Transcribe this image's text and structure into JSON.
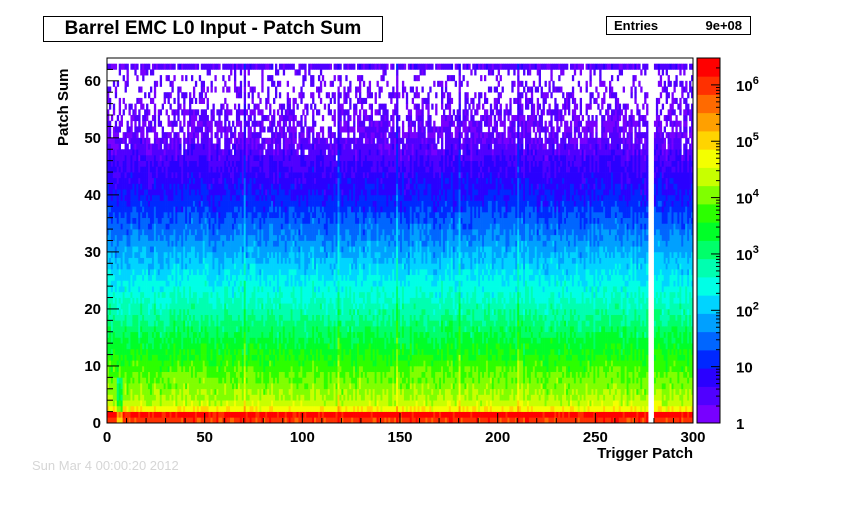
{
  "chart_data": {
    "type": "heatmap",
    "title": "Barrel EMC L0 Input - Patch Sum",
    "stats": {
      "label": "Entries",
      "value": "9e+08"
    },
    "xlabel": "Trigger Patch",
    "ylabel": "Patch Sum",
    "xlim": [
      0,
      300
    ],
    "ylim": [
      0,
      64
    ],
    "x_ticks": [
      0,
      50,
      100,
      150,
      200,
      250,
      300
    ],
    "y_ticks": [
      0,
      10,
      20,
      30,
      40,
      50,
      60
    ],
    "z_scale": "log",
    "zlim": [
      1,
      3000000
    ],
    "z_tick_labels": [
      "1",
      "10",
      "10^2",
      "10^3",
      "10^4",
      "10^5",
      "10^6"
    ],
    "z_tick_values": [
      1,
      10,
      100,
      1000,
      10000,
      100000,
      1000000
    ],
    "palette": [
      "#7800ff",
      "#5000ff",
      "#2a00ff",
      "#0028ff",
      "#0066ff",
      "#00a0ff",
      "#00d4ff",
      "#00ffe6",
      "#00ffb0",
      "#00ff6a",
      "#00ff28",
      "#2cff00",
      "#80ff00",
      "#c8ff00",
      "#f4ff00",
      "#ffd400",
      "#ffa000",
      "#ff6a00",
      "#ff3000",
      "#ff0000"
    ],
    "grid": false,
    "legend": "color-scale right",
    "bins": {
      "nx": 300,
      "ny": 64
    },
    "profile": {
      "description_ranges": [
        {
          "patch_sum": [
            0,
            1
          ],
          "approx_counts": 1000000
        },
        {
          "patch_sum": [
            1,
            2
          ],
          "approx_counts": 2000000
        },
        {
          "patch_sum": [
            2,
            4
          ],
          "approx_counts": 100000
        },
        {
          "patch_sum": [
            5,
            10
          ],
          "approx_counts": 10000
        },
        {
          "patch_sum": [
            10,
            20
          ],
          "approx_counts": 1000
        },
        {
          "patch_sum": [
            20,
            30
          ],
          "approx_counts": 100
        },
        {
          "patch_sum": [
            30,
            45
          ],
          "approx_counts": 10
        },
        {
          "patch_sum": [
            45,
            62
          ],
          "approx_counts": 1
        },
        {
          "patch_sum": [
            62,
            63
          ],
          "approx_counts": 3
        }
      ],
      "empty_columns": [
        277,
        278,
        279
      ],
      "hot_columns": [
        118,
        148,
        180,
        70,
        210
      ],
      "dead_low_columns": [
        5,
        6,
        7
      ]
    }
  },
  "footer": {
    "stamp": "Sun Mar  4 00:00:20 2012"
  }
}
